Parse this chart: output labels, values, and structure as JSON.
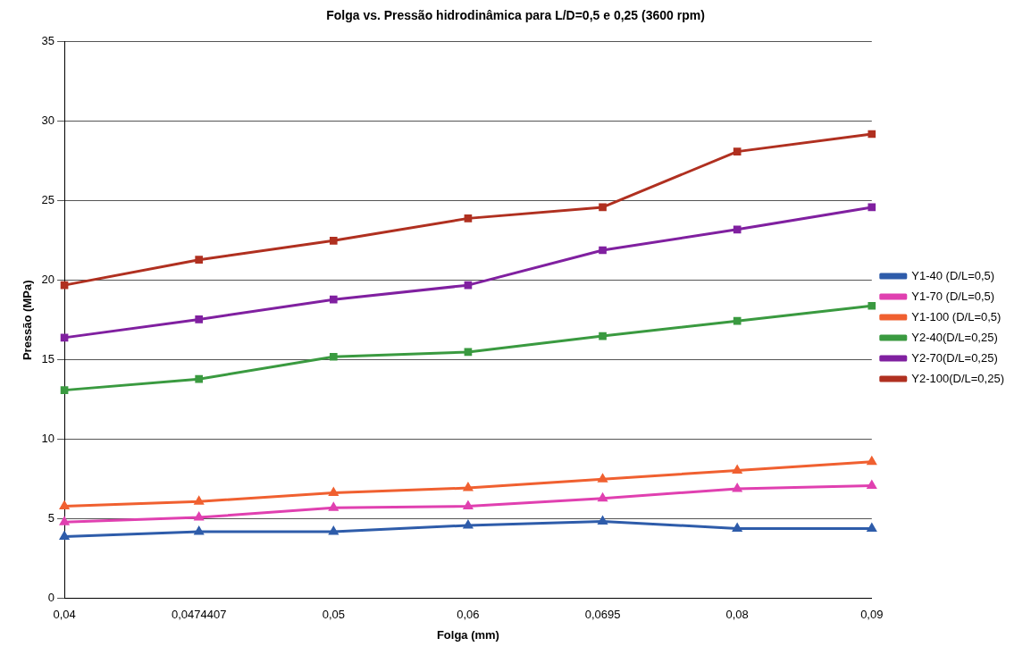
{
  "chart_data": {
    "type": "line",
    "title": "Folga vs. Pressão hidrodinâmica para L/D=0,5 e 0,25 (3600 rpm)",
    "xlabel": "Folga (mm)",
    "ylabel": "Pressão (MPa)",
    "categories": [
      "0,04",
      "0,0474407",
      "0,05",
      "0,06",
      "0,0695",
      "0,08",
      "0,09"
    ],
    "ylim": [
      0,
      35
    ],
    "yticks": [
      0,
      5,
      10,
      15,
      20,
      25,
      30,
      35
    ],
    "grid": "y",
    "legend": "right",
    "series": [
      {
        "name": "Y1-40 (D/L=0,5)",
        "color": "#2e5caa",
        "marker": "triangle",
        "values": [
          3.9,
          4.2,
          4.2,
          4.6,
          4.85,
          4.4,
          4.4
        ]
      },
      {
        "name": "Y1-70 (D/L=0,5)",
        "color": "#e040b0",
        "marker": "triangle",
        "values": [
          4.8,
          5.1,
          5.7,
          5.8,
          6.3,
          6.9,
          7.1
        ]
      },
      {
        "name": "Y1-100 (D/L=0,5)",
        "color": "#f06030",
        "marker": "triangle",
        "values": [
          5.8,
          6.1,
          6.65,
          6.95,
          7.5,
          8.05,
          8.6
        ]
      },
      {
        "name": "Y2-40(D/L=0,25)",
        "color": "#3a9a40",
        "marker": "square",
        "values": [
          13.1,
          13.8,
          15.2,
          15.5,
          16.5,
          17.45,
          18.4
        ]
      },
      {
        "name": "Y2-70(D/L=0,25)",
        "color": "#8020a0",
        "marker": "square",
        "values": [
          16.4,
          17.55,
          18.8,
          19.7,
          21.9,
          23.2,
          24.6
        ]
      },
      {
        "name": "Y2-100(D/L=0,25)",
        "color": "#b03020",
        "marker": "square",
        "values": [
          19.7,
          21.3,
          22.5,
          23.9,
          24.6,
          28.1,
          29.2
        ]
      }
    ]
  }
}
